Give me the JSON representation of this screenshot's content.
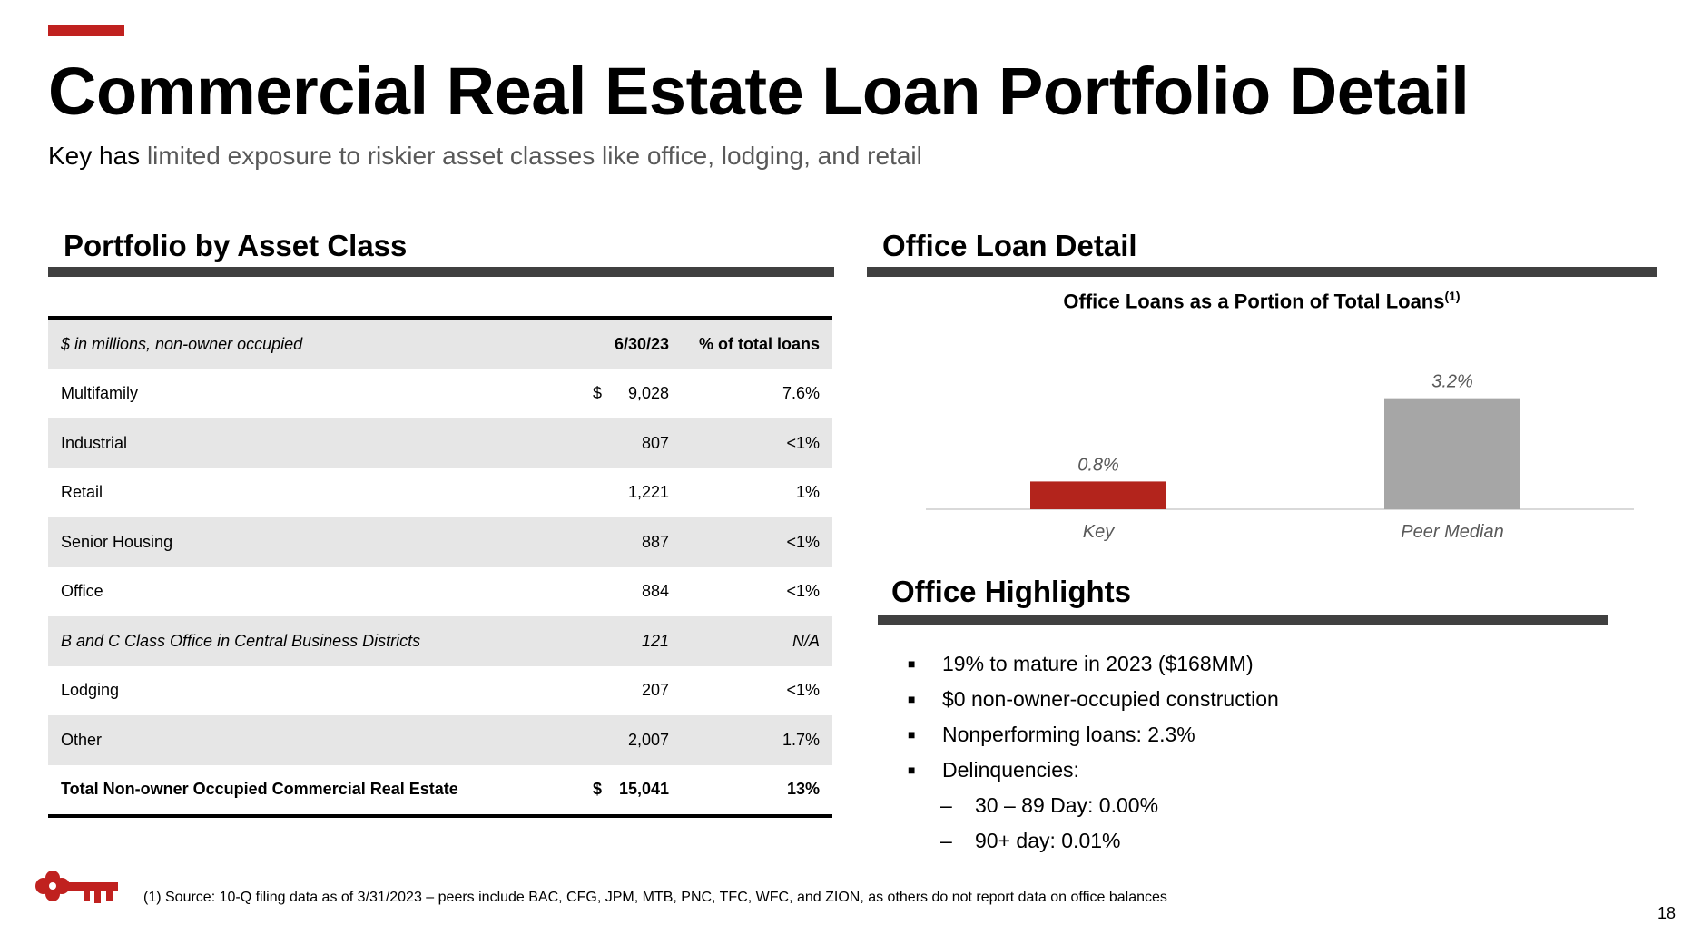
{
  "header": {
    "title": "Commercial Real Estate Loan Portfolio Detail",
    "subtitle_lead": "Key has",
    "subtitle_rest": " limited exposure to riskier asset classes like office, lodging, and retail"
  },
  "portfolio": {
    "heading": "Portfolio by Asset Class",
    "columns": [
      "$ in millions, non-owner occupied",
      "6/30/23",
      "% of total loans"
    ],
    "rows": [
      {
        "label": "Multifamily",
        "dollar": "$",
        "value": "9,028",
        "pct": "7.6%"
      },
      {
        "label": "Industrial",
        "dollar": "",
        "value": "807",
        "pct": "<1%"
      },
      {
        "label": "Retail",
        "dollar": "",
        "value": "1,221",
        "pct": "1%"
      },
      {
        "label": "Senior Housing",
        "dollar": "",
        "value": "887",
        "pct": "<1%"
      },
      {
        "label": "Office",
        "dollar": "",
        "value": "884",
        "pct": "<1%"
      },
      {
        "label": "B and C Class Office in Central Business Districts",
        "dollar": "",
        "value": "121",
        "pct": "N/A"
      },
      {
        "label": "Lodging",
        "dollar": "",
        "value": "207",
        "pct": "<1%"
      },
      {
        "label": "Other",
        "dollar": "",
        "value": "2,007",
        "pct": "1.7%"
      },
      {
        "label": "Total Non-owner Occupied Commercial Real Estate",
        "dollar": "$",
        "value": "15,041",
        "pct": "13%"
      }
    ]
  },
  "office_detail": {
    "heading": "Office Loan Detail",
    "chart_title": "Office Loans as a Portion of Total Loans",
    "chart_title_sup": "(1)"
  },
  "chart_data": {
    "type": "bar",
    "title": "Office Loans as a Portion of Total Loans(1)",
    "categories": [
      "Key",
      "Peer Median"
    ],
    "values": [
      0.8,
      3.2
    ],
    "data_labels": [
      "0.8%",
      "3.2%"
    ],
    "colors": [
      "#b3241c",
      "#a6a6a6"
    ],
    "ylim": [
      0,
      3.4
    ],
    "grid": false
  },
  "highlights": {
    "heading": "Office Highlights",
    "items": [
      {
        "text": "19% to mature in 2023 ($168MM)",
        "bullet": "■"
      },
      {
        "text": "$0 non-owner-occupied construction",
        "bullet": "■"
      },
      {
        "text": "Nonperforming loans: 2.3%",
        "bullet": "■"
      },
      {
        "text": "Delinquencies:",
        "bullet": "■"
      },
      {
        "text": "30 – 89 Day: 0.00%",
        "bullet": "–"
      },
      {
        "text": "90+ day: 0.01%",
        "bullet": "–"
      }
    ]
  },
  "footer": {
    "footnote": "(1) Source: 10-Q filing data as of 3/31/2023 – peers include BAC, CFG, JPM, MTB, PNC, TFC, WFC, and ZION, as others do not report data on office balances",
    "page_number": "18",
    "logo_icon": "key-logo-icon"
  },
  "colors": {
    "accent": "#c0211f",
    "rule": "#404040",
    "row_shade": "#e6e6e6"
  }
}
